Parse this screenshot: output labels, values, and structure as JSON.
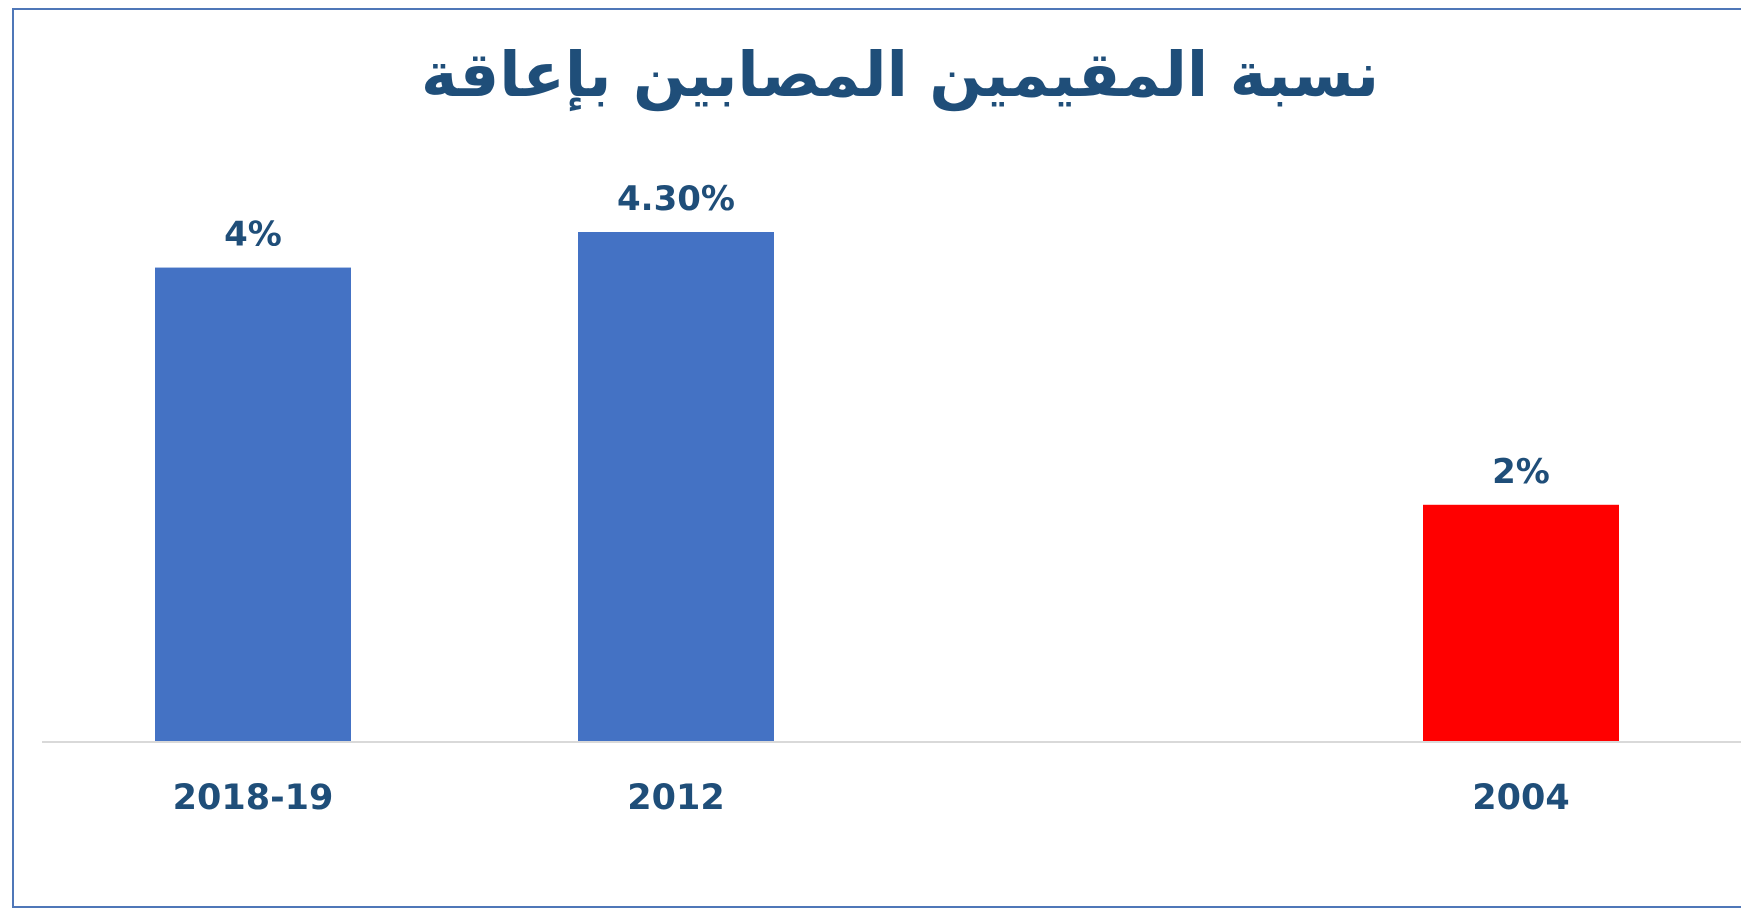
{
  "chart_data": {
    "type": "bar",
    "title": "نسبة المقيمين المصابين بإعاقة",
    "categories": [
      "2018-19",
      "2012",
      "",
      "2004"
    ],
    "values": [
      4,
      4.3,
      null,
      2
    ],
    "data_labels": [
      "4%",
      "4.30%",
      "",
      "2%"
    ],
    "bar_colors": [
      "#4472c4",
      "#4472c4",
      null,
      "#ff0000"
    ],
    "ylim": [
      0,
      4.3
    ],
    "xlabel": "",
    "ylabel": "",
    "grid": false,
    "legend": "none"
  }
}
